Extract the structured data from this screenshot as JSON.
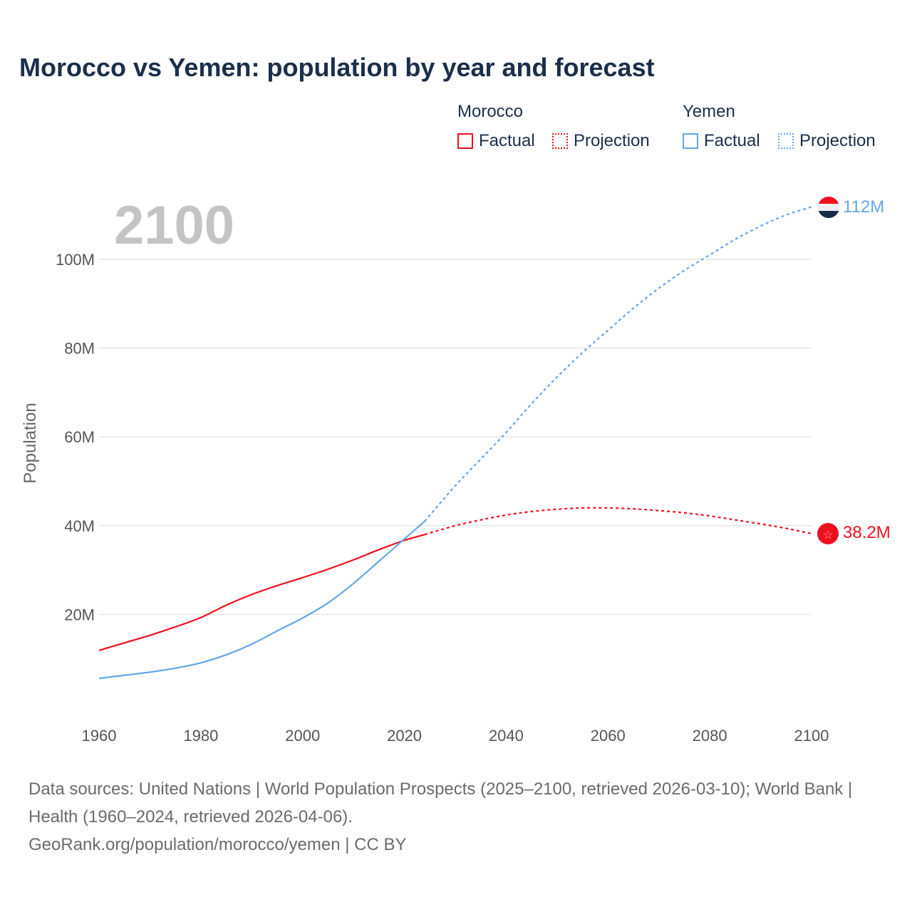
{
  "title": "Morocco vs Yemen: population by year and forecast",
  "legend": {
    "groups": [
      {
        "name": "Morocco",
        "color": "#f00f1f",
        "factual": "Factual",
        "projection": "Projection"
      },
      {
        "name": "Yemen",
        "color": "#64a6ea",
        "factual": "Factual",
        "projection": "Projection"
      }
    ]
  },
  "year_label": "2100",
  "end_labels": {
    "morocco": "38.2M",
    "yemen": "112M"
  },
  "footer": {
    "sources": "Data sources: United Nations | World Population Prospects (2025–2100, retrieved 2026-03-10); World Bank | Health (1960–2024, retrieved 2026-04-06).",
    "attribution": "GeoRank.org/population/morocco/yemen | CC BY"
  },
  "chart_data": {
    "type": "line",
    "title": "Morocco vs Yemen: population by year and forecast",
    "xlabel": "",
    "ylabel": "Population",
    "xlim": [
      1960,
      2100
    ],
    "ylim": [
      0,
      110
    ],
    "y_unit": "M",
    "xticks": [
      1960,
      1980,
      2000,
      2020,
      2040,
      2060,
      2080,
      2100
    ],
    "xtick_labels": [
      "1960",
      "1980",
      "2000",
      "2020",
      "2040",
      "2060",
      "2080",
      "2100"
    ],
    "yticks": [
      20,
      40,
      60,
      80,
      100
    ],
    "ytick_labels": [
      "20M",
      "40M",
      "60M",
      "80M",
      "100M"
    ],
    "grid": true,
    "legend_position": "top-right",
    "series": [
      {
        "name": "Morocco Factual",
        "color": "#f00f1f",
        "style": "solid",
        "x": [
          1960,
          1965,
          1970,
          1975,
          1980,
          1985,
          1990,
          1995,
          2000,
          2005,
          2010,
          2015,
          2020,
          2024
        ],
        "y": [
          11.9,
          13.6,
          15.3,
          17.2,
          19.3,
          22.1,
          24.5,
          26.5,
          28.3,
          30.2,
          32.3,
          34.6,
          36.7,
          38.0
        ]
      },
      {
        "name": "Morocco Projection",
        "color": "#f00f1f",
        "style": "dotted",
        "x": [
          2024,
          2030,
          2035,
          2040,
          2045,
          2050,
          2055,
          2060,
          2065,
          2070,
          2075,
          2080,
          2085,
          2090,
          2095,
          2100
        ],
        "y": [
          38.0,
          40.0,
          41.3,
          42.4,
          43.2,
          43.7,
          44.0,
          44.0,
          43.8,
          43.4,
          42.9,
          42.2,
          41.3,
          40.4,
          39.4,
          38.2
        ]
      },
      {
        "name": "Yemen Factual",
        "color": "#64a6ea",
        "style": "solid",
        "x": [
          1960,
          1965,
          1970,
          1975,
          1980,
          1985,
          1990,
          1995,
          2000,
          2005,
          2010,
          2015,
          2020,
          2024
        ],
        "y": [
          5.6,
          6.3,
          7.0,
          7.9,
          9.1,
          10.9,
          13.3,
          16.3,
          19.2,
          22.6,
          27.0,
          32.0,
          37.0,
          41.0
        ]
      },
      {
        "name": "Yemen Projection",
        "color": "#64a6ea",
        "style": "dotted",
        "x": [
          2024,
          2030,
          2035,
          2040,
          2045,
          2050,
          2055,
          2060,
          2065,
          2070,
          2075,
          2080,
          2085,
          2090,
          2095,
          2100
        ],
        "y": [
          41.0,
          49.0,
          55.0,
          61.0,
          67.5,
          73.5,
          79.0,
          84.0,
          89.0,
          93.5,
          97.5,
          101.0,
          104.5,
          107.5,
          110.0,
          111.8
        ]
      }
    ]
  }
}
